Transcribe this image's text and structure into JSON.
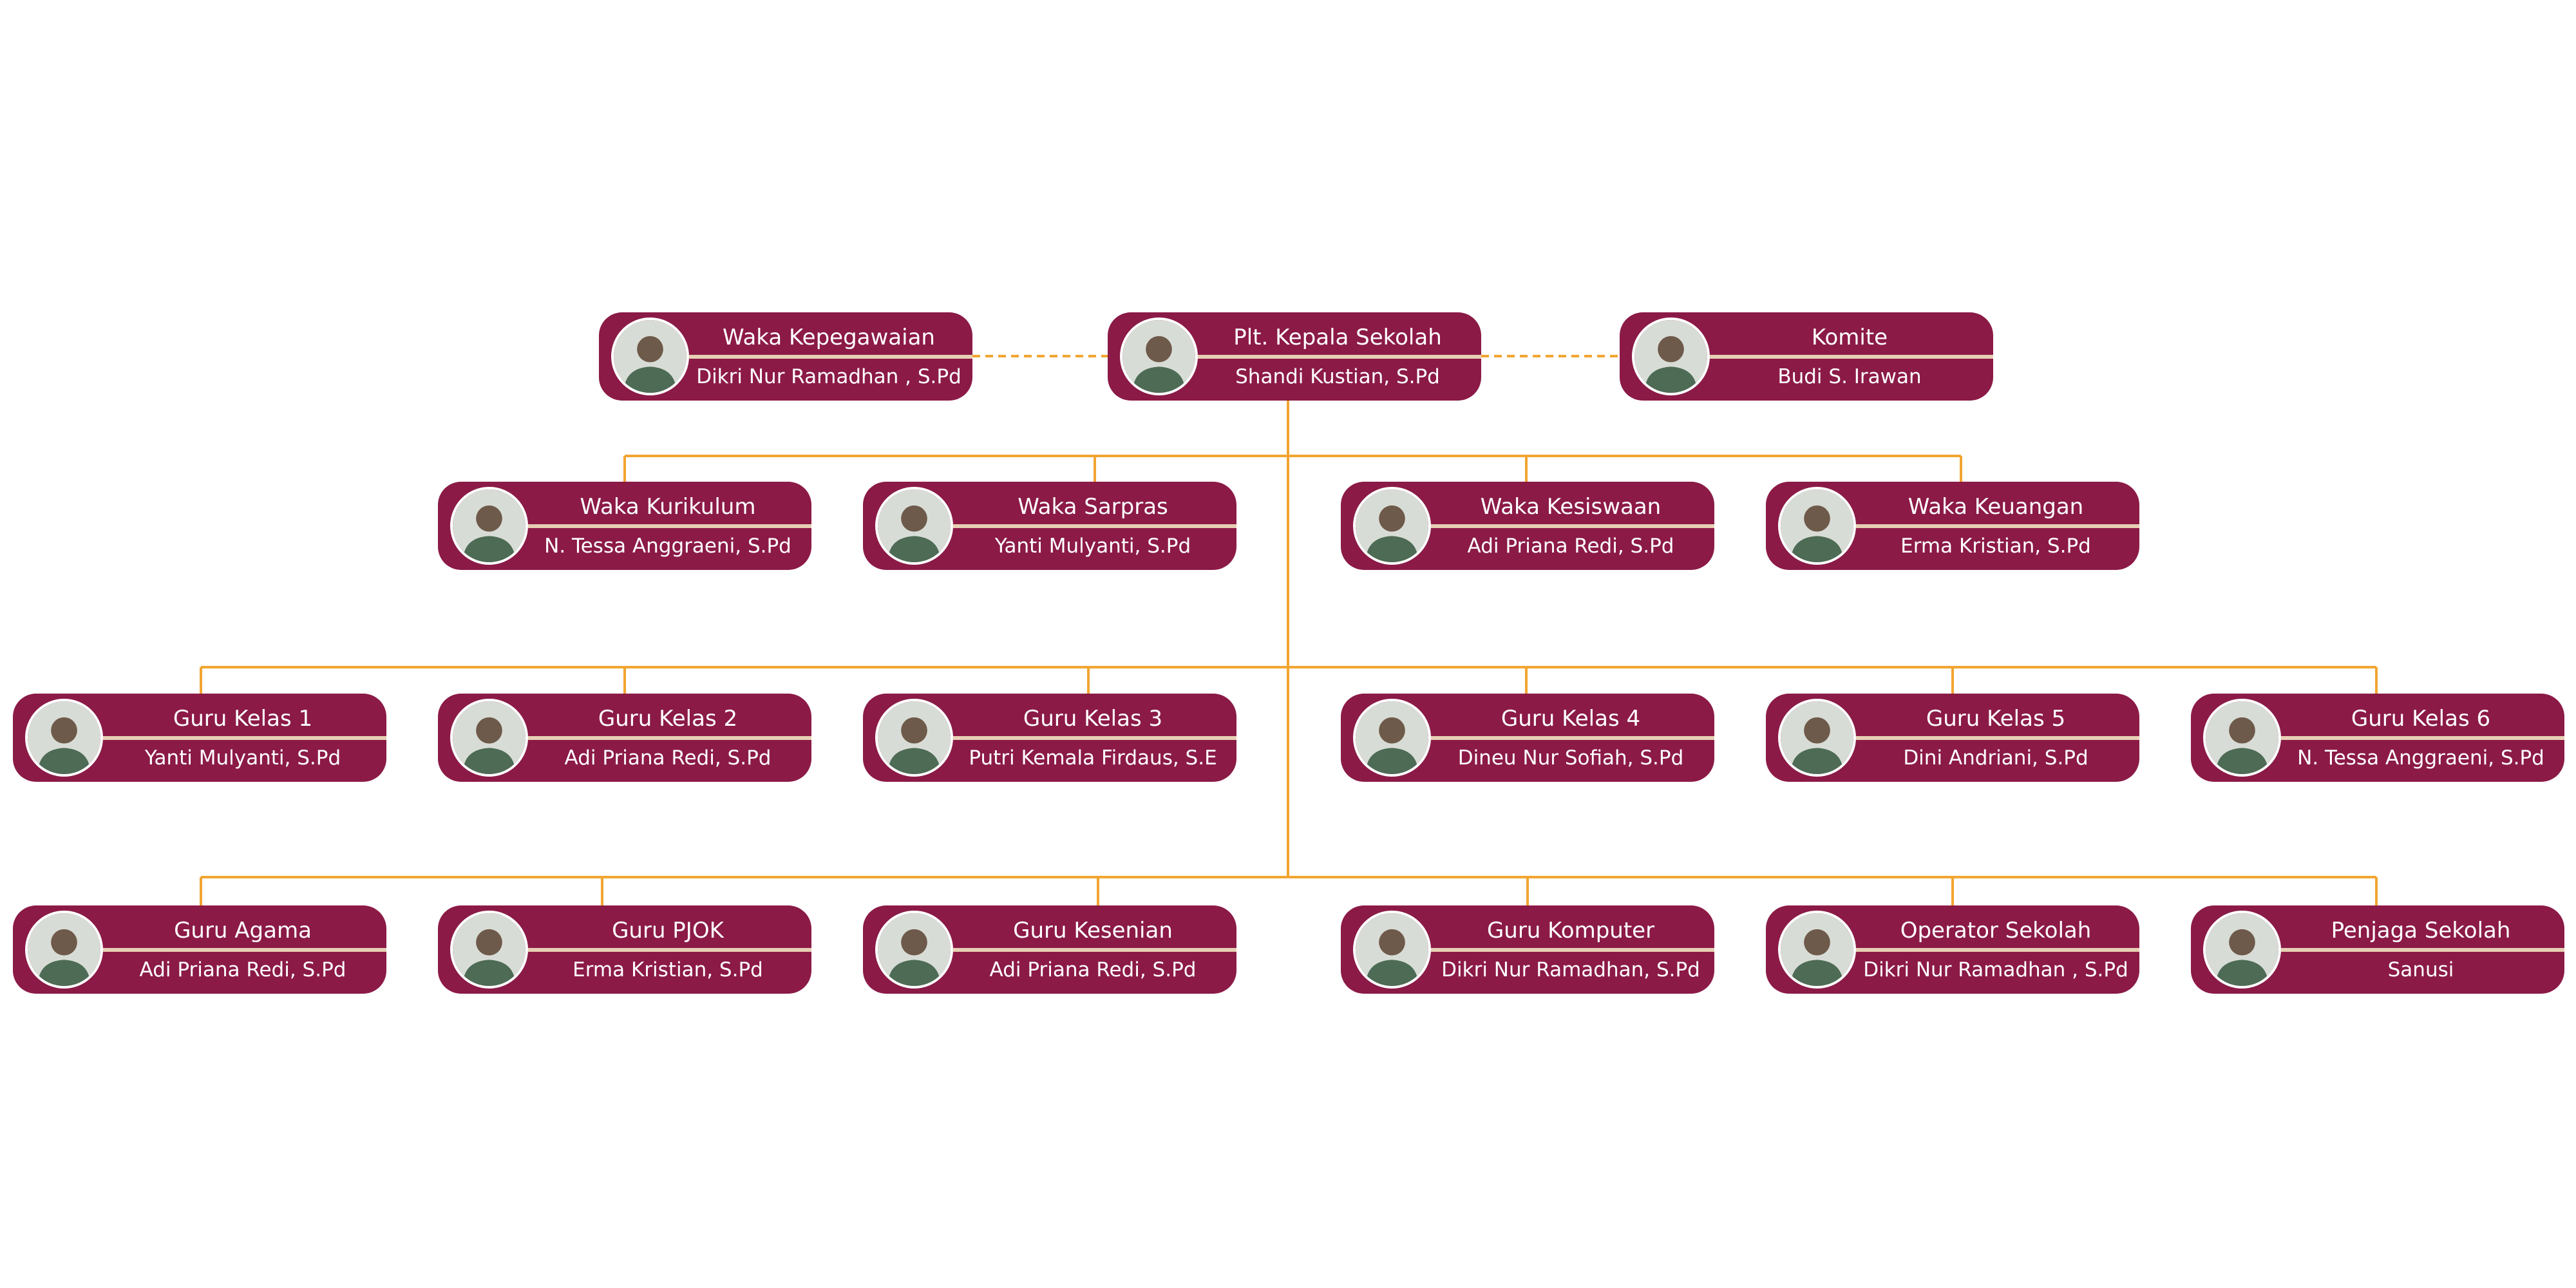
{
  "theme": {
    "card_color": "#8b1a47",
    "line_color": "#f2a531",
    "divider_color": "#e7cfb4",
    "avatar_bg": "#d8dcd6"
  },
  "nodes": [
    {
      "id": "waka-kepegawaian",
      "role": "Waka Kepegawaian",
      "name": "Dikri Nur Ramadhan , S.Pd"
    },
    {
      "id": "plt-kepala-sekolah",
      "role": "Plt. Kepala Sekolah",
      "name": "Shandi Kustian, S.Pd"
    },
    {
      "id": "komite",
      "role": "Komite",
      "name": "Budi S. Irawan"
    },
    {
      "id": "waka-kurikulum",
      "role": "Waka Kurikulum",
      "name": "N. Tessa Anggraeni, S.Pd"
    },
    {
      "id": "waka-sarpras",
      "role": "Waka Sarpras",
      "name": "Yanti Mulyanti, S.Pd"
    },
    {
      "id": "waka-kesiswaan",
      "role": "Waka Kesiswaan",
      "name": "Adi Priana Redi, S.Pd"
    },
    {
      "id": "waka-keuangan",
      "role": "Waka Keuangan",
      "name": "Erma Kristian, S.Pd"
    },
    {
      "id": "guru-kelas-1",
      "role": "Guru Kelas 1",
      "name": "Yanti Mulyanti, S.Pd"
    },
    {
      "id": "guru-kelas-2",
      "role": "Guru Kelas 2",
      "name": "Adi Priana Redi, S.Pd"
    },
    {
      "id": "guru-kelas-3",
      "role": "Guru Kelas 3",
      "name": "Putri Kemala Firdaus, S.E"
    },
    {
      "id": "guru-kelas-4",
      "role": "Guru Kelas 4",
      "name": "Dineu Nur Sofiah, S.Pd"
    },
    {
      "id": "guru-kelas-5",
      "role": "Guru Kelas 5",
      "name": "Dini Andriani, S.Pd"
    },
    {
      "id": "guru-kelas-6",
      "role": "Guru Kelas 6",
      "name": "N. Tessa Anggraeni, S.Pd"
    },
    {
      "id": "guru-agama",
      "role": "Guru Agama",
      "name": "Adi Priana Redi, S.Pd"
    },
    {
      "id": "guru-pjok",
      "role": "Guru PJOK",
      "name": "Erma Kristian, S.Pd"
    },
    {
      "id": "guru-kesenian",
      "role": "Guru Kesenian",
      "name": "Adi Priana Redi, S.Pd"
    },
    {
      "id": "guru-komputer",
      "role": "Guru Komputer",
      "name": "Dikri Nur Ramadhan, S.Pd"
    },
    {
      "id": "operator-sekolah",
      "role": "Operator Sekolah",
      "name": "Dikri Nur Ramadhan , S.Pd"
    },
    {
      "id": "penjaga-sekolah",
      "role": "Penjaga Sekolah",
      "name": "Sanusi"
    }
  ]
}
